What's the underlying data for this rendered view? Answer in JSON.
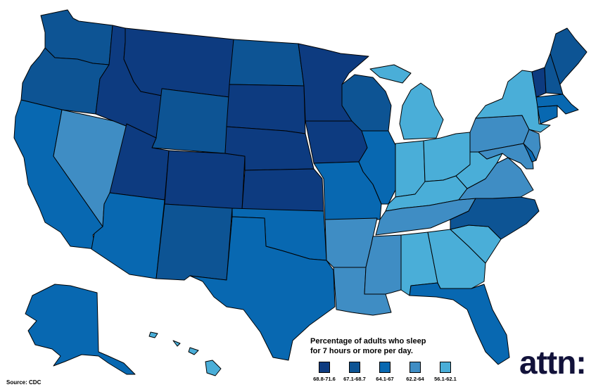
{
  "legend": {
    "title_line1": "Percentage of adults who sleep",
    "title_line2": "for 7 hours or more per day.",
    "items": [
      {
        "label": "68.8-71.6",
        "color": "#0d3b80"
      },
      {
        "label": "67.1-68.7",
        "color": "#0d5494"
      },
      {
        "label": "64.1-67",
        "color": "#0868b1"
      },
      {
        "label": "62.2-64",
        "color": "#3f8dc4"
      },
      {
        "label": "56.1-62.1",
        "color": "#4aaed8"
      }
    ]
  },
  "source": "Source: CDC",
  "logo": "attn:",
  "map_data": {
    "WA": "67.1-68.7",
    "OR": "67.1-68.7",
    "CA": "64.1-67",
    "NV": "62.2-64",
    "ID": "68.8-71.6",
    "MT": "68.8-71.6",
    "WY": "67.1-68.7",
    "UT": "68.8-71.6",
    "AZ": "64.1-67",
    "CO": "68.8-71.6",
    "NM": "67.1-68.7",
    "ND": "67.1-68.7",
    "SD": "68.8-71.6",
    "NE": "68.8-71.6",
    "KS": "68.8-71.6",
    "OK": "64.1-67",
    "TX": "64.1-67",
    "MN": "68.8-71.6",
    "IA": "68.8-71.6",
    "MO": "64.1-67",
    "AR": "62.2-64",
    "LA": "62.2-64",
    "WI": "67.1-68.7",
    "IL": "64.1-67",
    "MI": "56.1-62.1",
    "IN": "56.1-62.1",
    "OH": "56.1-62.1",
    "KY": "56.1-62.1",
    "TN": "62.2-64",
    "MS": "62.2-64",
    "AL": "56.1-62.1",
    "GA": "56.1-62.1",
    "FL": "64.1-67",
    "SC": "56.1-62.1",
    "NC": "67.1-68.7",
    "VA": "62.2-64",
    "WV": "56.1-62.1",
    "PA": "62.2-64",
    "NY": "56.1-62.1",
    "VT": "68.8-71.6",
    "NH": "67.1-68.7",
    "ME": "67.1-68.7",
    "MA": "64.1-67",
    "CT": "64.1-67",
    "NJ": "62.2-64",
    "DE": "64.1-67",
    "MD": "62.2-64",
    "AK": "64.1-67",
    "HI": "56.1-62.1"
  }
}
